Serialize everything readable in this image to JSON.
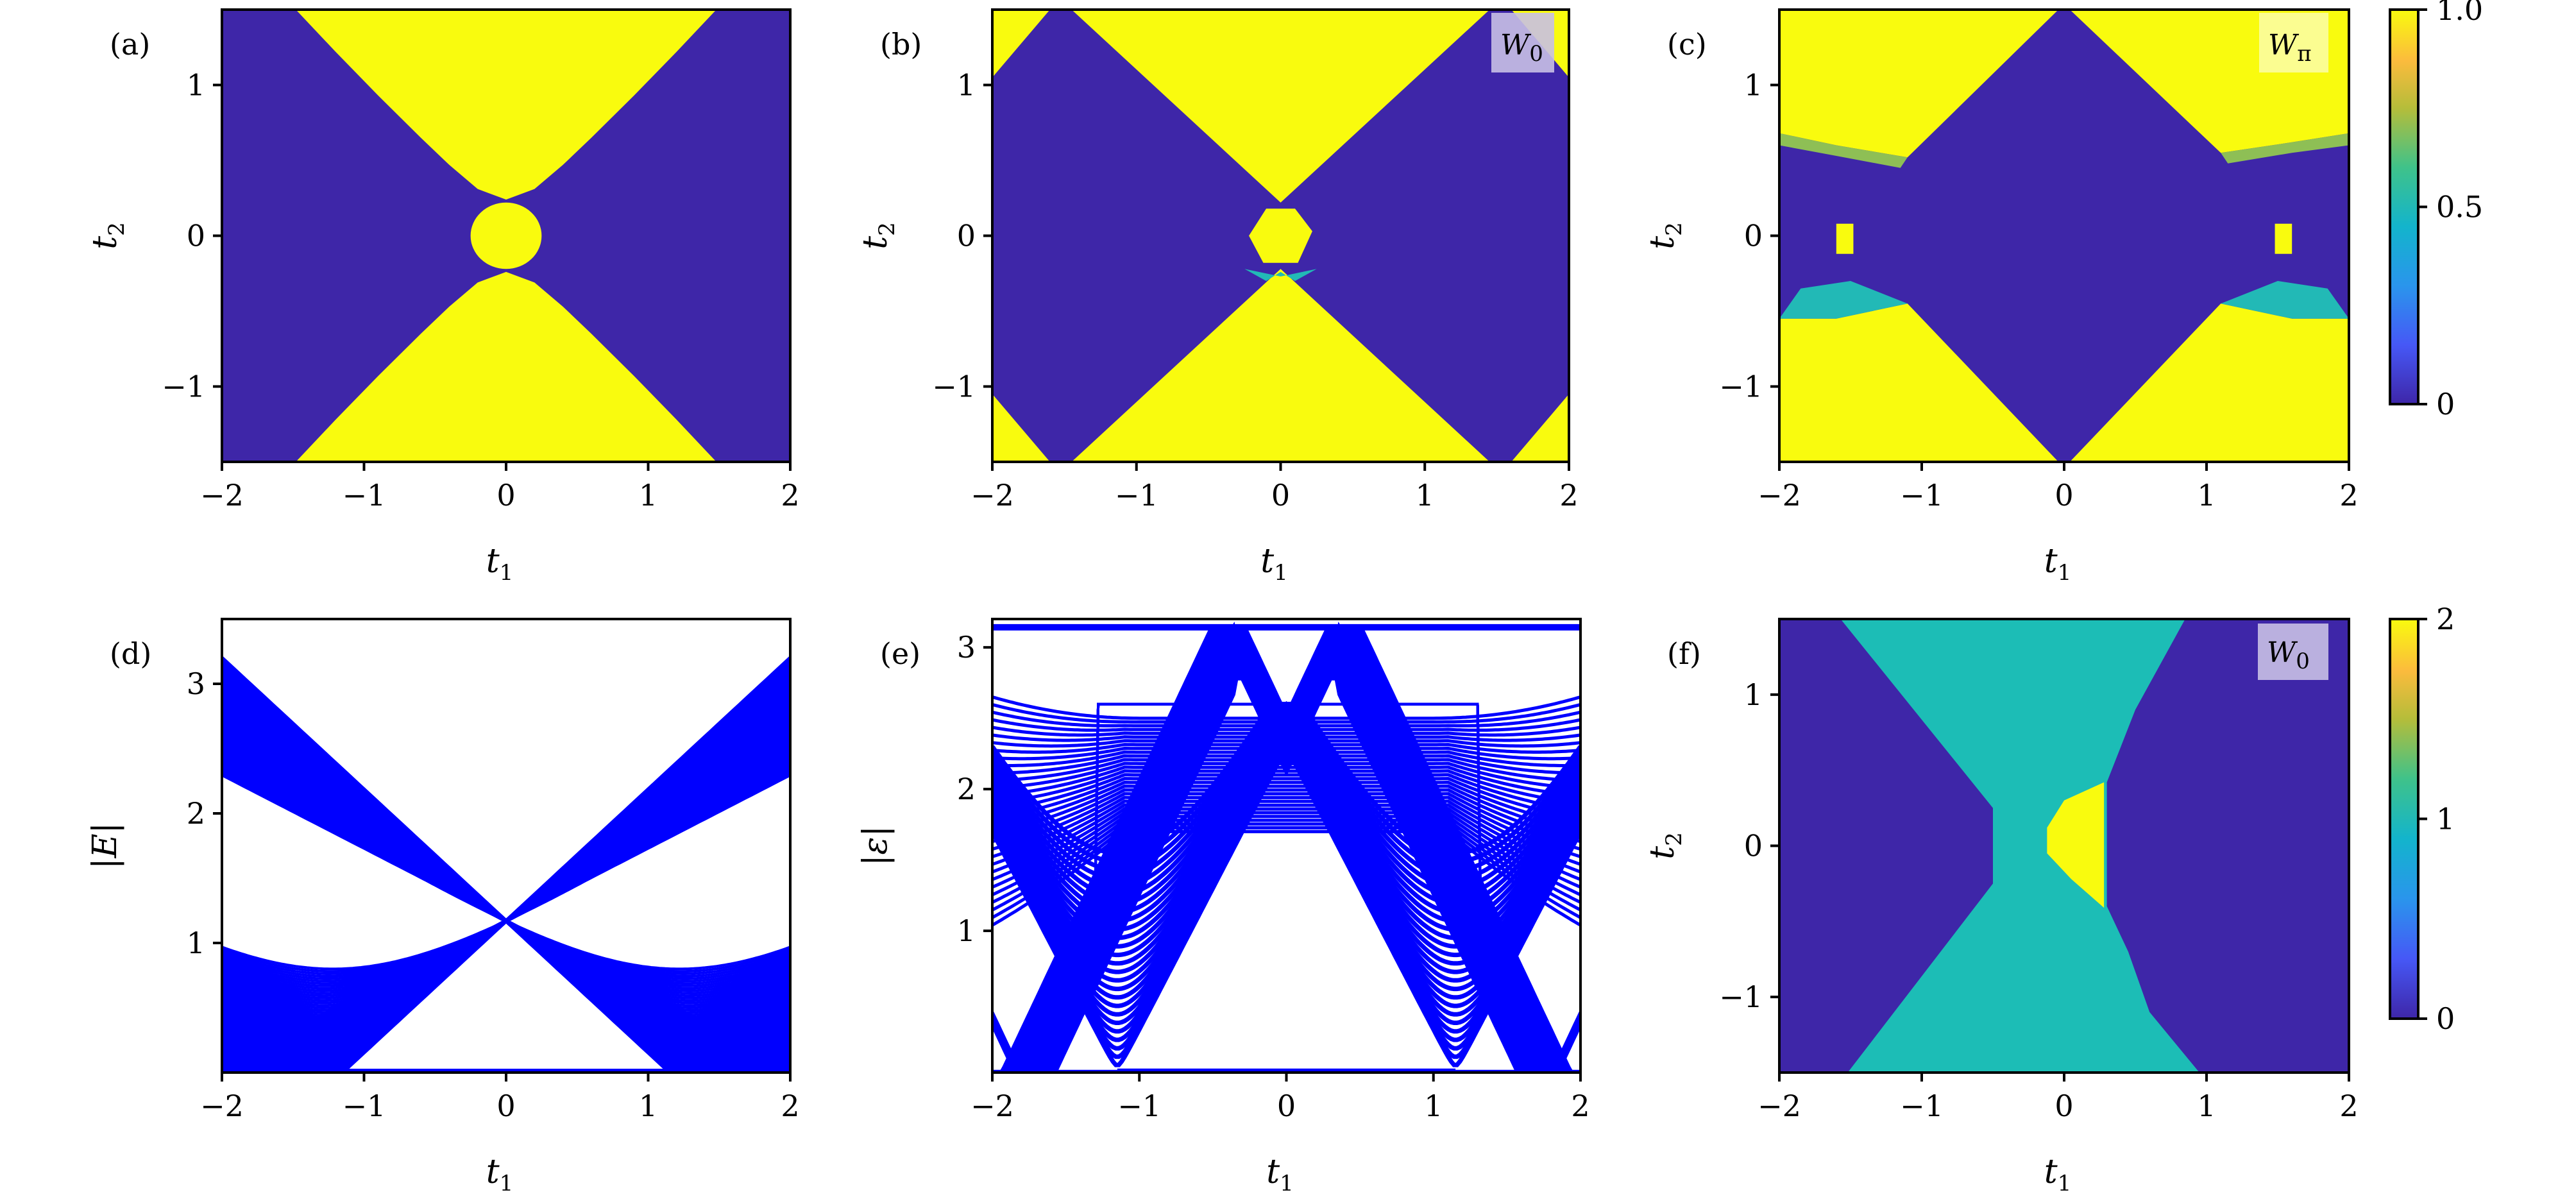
{
  "colors": {
    "low": "#3e26a8",
    "high": "#f9fb0e",
    "mid_f": "#1cbdb6",
    "line": "#0000ff",
    "badge_w0": "#c8c0e4",
    "badge_wpi": "#fbfda0"
  },
  "chart_data": [
    {
      "id": "a",
      "type": "heatmap",
      "panel_label": "(a)",
      "xlabel": "t",
      "xlabel_sub": "1",
      "ylabel": "t",
      "ylabel_sub": "2",
      "xlim": [
        -2,
        2
      ],
      "ylim": [
        -1.5,
        1.5
      ],
      "xticks": [
        -2,
        -1,
        0,
        1,
        2
      ],
      "xtick_labels": [
        "−2",
        "−1",
        "0",
        "1",
        "2"
      ],
      "yticks": [
        -1,
        0,
        1
      ],
      "ytick_labels": [
        "−1",
        "0",
        "1"
      ],
      "background_value": 0,
      "regions": [
        {
          "value": 1,
          "polygon": [
            [
              -1.48,
              1.5
            ],
            [
              -1.2,
              1.22
            ],
            [
              -0.9,
              0.93
            ],
            [
              -0.6,
              0.65
            ],
            [
              -0.4,
              0.47
            ],
            [
              -0.2,
              0.31
            ],
            [
              0,
              0.24
            ],
            [
              0.2,
              0.31
            ],
            [
              0.4,
              0.47
            ],
            [
              0.6,
              0.65
            ],
            [
              0.9,
              0.93
            ],
            [
              1.2,
              1.22
            ],
            [
              1.48,
              1.5
            ]
          ]
        },
        {
          "value": 1,
          "polygon": [
            [
              -1.48,
              -1.5
            ],
            [
              -1.2,
              -1.22
            ],
            [
              -0.9,
              -0.93
            ],
            [
              -0.6,
              -0.65
            ],
            [
              -0.4,
              -0.47
            ],
            [
              -0.2,
              -0.31
            ],
            [
              0,
              -0.24
            ],
            [
              0.2,
              -0.31
            ],
            [
              0.4,
              -0.47
            ],
            [
              0.6,
              -0.65
            ],
            [
              0.9,
              -0.93
            ],
            [
              1.2,
              -1.22
            ],
            [
              1.48,
              -1.5
            ]
          ]
        }
      ],
      "ellipses": [
        {
          "value": 1,
          "center": [
            0,
            0
          ],
          "radii": [
            0.25,
            0.22
          ]
        }
      ]
    },
    {
      "id": "b",
      "type": "heatmap",
      "panel_label": "(b)",
      "badge": "W",
      "badge_sub": "0",
      "xlabel": "t",
      "xlabel_sub": "1",
      "ylabel": "t",
      "ylabel_sub": "2",
      "xlim": [
        -2,
        2
      ],
      "ylim": [
        -1.5,
        1.5
      ],
      "xticks": [
        -2,
        -1,
        0,
        1,
        2
      ],
      "xtick_labels": [
        "−2",
        "−1",
        "0",
        "1",
        "2"
      ],
      "yticks": [
        -1,
        0,
        1
      ],
      "ytick_labels": [
        "−1",
        "0",
        "1"
      ],
      "background_value": 0,
      "regions": [
        {
          "value": 1,
          "polygon": [
            [
              -1.45,
              1.5
            ],
            [
              1.45,
              1.5
            ],
            [
              0,
              0.22
            ]
          ]
        },
        {
          "value": 1,
          "polygon": [
            [
              -1.45,
              -1.5
            ],
            [
              1.45,
              -1.5
            ],
            [
              0,
              -0.22
            ]
          ]
        },
        {
          "value": 1,
          "polygon": [
            [
              -2,
              1.5
            ],
            [
              -1.6,
              1.5
            ],
            [
              -2,
              1.05
            ]
          ]
        },
        {
          "value": 1,
          "polygon": [
            [
              2,
              1.5
            ],
            [
              1.6,
              1.5
            ],
            [
              2,
              1.05
            ]
          ]
        },
        {
          "value": 1,
          "polygon": [
            [
              -2,
              -1.5
            ],
            [
              -1.6,
              -1.5
            ],
            [
              -2,
              -1.05
            ]
          ]
        },
        {
          "value": 1,
          "polygon": [
            [
              2,
              -1.5
            ],
            [
              1.6,
              -1.5
            ],
            [
              2,
              -1.05
            ]
          ]
        },
        {
          "value": 1,
          "polygon": [
            [
              -0.1,
              0.18
            ],
            [
              0.1,
              0.18
            ],
            [
              0.22,
              0.03
            ],
            [
              0.12,
              -0.18
            ],
            [
              -0.12,
              -0.18
            ],
            [
              -0.22,
              0.0
            ]
          ]
        },
        {
          "value": 0.5,
          "polygon": [
            [
              -0.25,
              -0.22
            ],
            [
              -0.1,
              -0.3
            ],
            [
              0,
              -0.24
            ],
            [
              0.1,
              -0.3
            ],
            [
              0.25,
              -0.22
            ],
            [
              0,
              -0.27
            ]
          ]
        }
      ]
    },
    {
      "id": "c",
      "type": "heatmap",
      "panel_label": "(c)",
      "badge": "W",
      "badge_sub": "π",
      "xlabel": "t",
      "xlabel_sub": "1",
      "ylabel": "t",
      "ylabel_sub": "2",
      "xlim": [
        -2,
        2
      ],
      "ylim": [
        -1.5,
        1.5
      ],
      "xticks": [
        -2,
        -1,
        0,
        1,
        2
      ],
      "xtick_labels": [
        "−2",
        "−1",
        "0",
        "1",
        "2"
      ],
      "yticks": [
        -1,
        0,
        1
      ],
      "ytick_labels": [
        "−1",
        "0",
        "1"
      ],
      "background_value": 0,
      "regions": [
        {
          "value": 1,
          "polygon": [
            [
              -2,
              1.5
            ],
            [
              -0.04,
              1.5
            ],
            [
              -1.1,
              0.52
            ],
            [
              -1.6,
              0.6
            ],
            [
              -2,
              0.68
            ]
          ]
        },
        {
          "value": 1,
          "polygon": [
            [
              2,
              1.5
            ],
            [
              0.04,
              1.5
            ],
            [
              1.1,
              0.55
            ],
            [
              1.6,
              0.62
            ],
            [
              2,
              0.68
            ]
          ]
        },
        {
          "value": 0.7,
          "polygon": [
            [
              -2,
              0.68
            ],
            [
              -1.6,
              0.6
            ],
            [
              -1.1,
              0.52
            ],
            [
              -1.15,
              0.45
            ],
            [
              -1.6,
              0.53
            ],
            [
              -2,
              0.6
            ]
          ]
        },
        {
          "value": 0.7,
          "polygon": [
            [
              2,
              0.68
            ],
            [
              1.6,
              0.62
            ],
            [
              1.1,
              0.55
            ],
            [
              1.15,
              0.48
            ],
            [
              1.6,
              0.55
            ],
            [
              2,
              0.6
            ]
          ]
        },
        {
          "value": 1,
          "polygon": [
            [
              -2,
              -1.5
            ],
            [
              -0.04,
              -1.5
            ],
            [
              -1.1,
              -0.45
            ],
            [
              -1.6,
              -0.55
            ],
            [
              -2,
              -0.55
            ]
          ]
        },
        {
          "value": 1,
          "polygon": [
            [
              2,
              -1.5
            ],
            [
              0.04,
              -1.5
            ],
            [
              1.1,
              -0.45
            ],
            [
              1.6,
              -0.55
            ],
            [
              2,
              -0.55
            ]
          ]
        },
        {
          "value": 0.5,
          "polygon": [
            [
              -2,
              -0.55
            ],
            [
              -1.6,
              -0.55
            ],
            [
              -1.1,
              -0.45
            ],
            [
              -1.5,
              -0.3
            ],
            [
              -1.85,
              -0.35
            ]
          ]
        },
        {
          "value": 0.5,
          "polygon": [
            [
              2,
              -0.55
            ],
            [
              1.6,
              -0.55
            ],
            [
              1.1,
              -0.45
            ],
            [
              1.5,
              -0.3
            ],
            [
              1.85,
              -0.35
            ]
          ]
        },
        {
          "value": 1,
          "polygon": [
            [
              -1.6,
              0.08
            ],
            [
              -1.48,
              0.08
            ],
            [
              -1.48,
              -0.12
            ],
            [
              -1.6,
              -0.12
            ]
          ]
        },
        {
          "value": 1,
          "polygon": [
            [
              1.48,
              0.08
            ],
            [
              1.6,
              0.08
            ],
            [
              1.6,
              -0.12
            ],
            [
              1.48,
              -0.12
            ]
          ]
        }
      ]
    },
    {
      "id": "d",
      "type": "line",
      "panel_label": "(d)",
      "xlabel": "t",
      "xlabel_sub": "1",
      "ylabel": "|E|",
      "xlim": [
        -2,
        2
      ],
      "ylim": [
        0,
        3.5
      ],
      "xticks": [
        -2,
        -1,
        0,
        1,
        2
      ],
      "xtick_labels": [
        "−2",
        "−1",
        "0",
        "1",
        "2"
      ],
      "yticks": [
        1,
        2,
        3
      ],
      "ytick_labels": [
        "1",
        "2",
        "3"
      ],
      "crossing": [
        0,
        1.17
      ],
      "zero_modes_range": [
        -1.15,
        1.15
      ]
    },
    {
      "id": "e",
      "type": "line",
      "panel_label": "(e)",
      "xlabel": "t",
      "xlabel_sub": "1",
      "ylabel": "|ε|",
      "xlim": [
        -2,
        2
      ],
      "ylim": [
        0,
        3.2
      ],
      "xticks": [
        -2,
        -1,
        0,
        1,
        2
      ],
      "xtick_labels": [
        "−2",
        "−1",
        "0",
        "1",
        "2"
      ],
      "yticks": [
        1,
        2,
        3
      ],
      "ytick_labels": [
        "1",
        "2",
        "3"
      ],
      "pi_modes_level": 3.14159,
      "zero_modes_range": [
        -1.15,
        1.15
      ]
    },
    {
      "id": "f",
      "type": "heatmap",
      "panel_label": "(f)",
      "badge": "W",
      "badge_sub": "0",
      "xlabel": "t",
      "xlabel_sub": "1",
      "ylabel": "t",
      "ylabel_sub": "2",
      "xlim": [
        -2,
        2
      ],
      "ylim": [
        -1.5,
        1.5
      ],
      "xticks": [
        -2,
        -1,
        0,
        1,
        2
      ],
      "xtick_labels": [
        "−2",
        "−1",
        "0",
        "1",
        "2"
      ],
      "yticks": [
        -1,
        0,
        1
      ],
      "ytick_labels": [
        "−1",
        "0",
        "1"
      ],
      "background_value": 0,
      "regions": [
        {
          "value": 1,
          "polygon": [
            [
              -1.57,
              1.5
            ],
            [
              0.85,
              1.5
            ],
            [
              0.5,
              0.9
            ],
            [
              0.3,
              0.42
            ],
            [
              0.3,
              -0.4
            ],
            [
              0.45,
              -0.7
            ],
            [
              0.6,
              -1.1
            ],
            [
              0.95,
              -1.5
            ],
            [
              -1.52,
              -1.5
            ],
            [
              -0.5,
              -0.25
            ],
            [
              -0.5,
              0.25
            ]
          ]
        },
        {
          "value": 2,
          "polygon": [
            [
              -0.12,
              0.12
            ],
            [
              0.0,
              0.3
            ],
            [
              0.28,
              0.42
            ],
            [
              0.28,
              -0.41
            ],
            [
              0.05,
              -0.22
            ],
            [
              -0.12,
              -0.05
            ]
          ]
        }
      ]
    }
  ],
  "colorbars": [
    {
      "range": [
        0,
        1
      ],
      "ticks": [
        0,
        0.5,
        1
      ],
      "tick_labels": [
        "0",
        "0.5",
        "1.0"
      ]
    },
    {
      "range": [
        0,
        2
      ],
      "ticks": [
        0,
        1,
        2
      ],
      "tick_labels": [
        "0",
        "1",
        "2"
      ]
    }
  ]
}
